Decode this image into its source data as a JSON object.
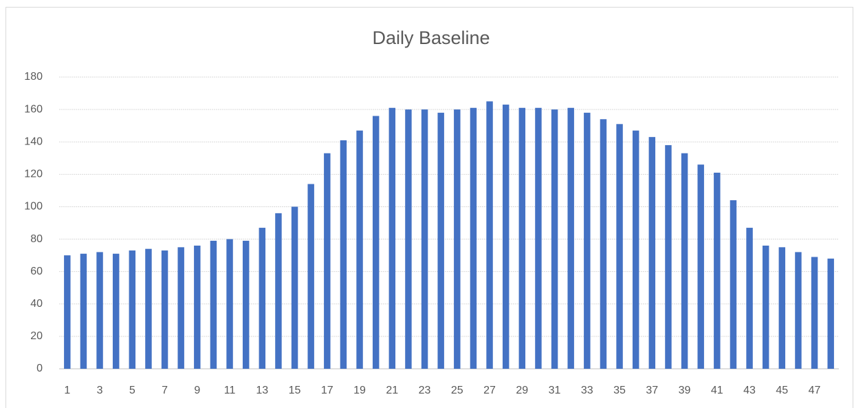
{
  "chart_data": {
    "type": "bar",
    "title": "Daily Baseline",
    "categories": [
      1,
      null,
      3,
      null,
      5,
      null,
      7,
      null,
      9,
      null,
      11,
      null,
      13,
      null,
      15,
      null,
      17,
      null,
      19,
      null,
      21,
      null,
      23,
      null,
      25,
      null,
      27,
      null,
      29,
      null,
      31,
      null,
      33,
      null,
      35,
      null,
      37,
      null,
      39,
      null,
      41,
      null,
      43,
      null,
      45,
      null,
      47,
      null
    ],
    "values": [
      70,
      71,
      72,
      71,
      73,
      74,
      73,
      75,
      76,
      79,
      80,
      79,
      87,
      96,
      100,
      114,
      133,
      141,
      147,
      156,
      161,
      160,
      160,
      158,
      160,
      161,
      165,
      163,
      161,
      161,
      160,
      161,
      158,
      154,
      151,
      147,
      143,
      138,
      133,
      126,
      121,
      104,
      87,
      76,
      75,
      72,
      69,
      68
    ],
    "color": "#4472c4",
    "ylim": [
      0,
      180
    ],
    "yticks": [
      0,
      20,
      40,
      60,
      80,
      100,
      120,
      140,
      160,
      180
    ],
    "grid": true
  }
}
